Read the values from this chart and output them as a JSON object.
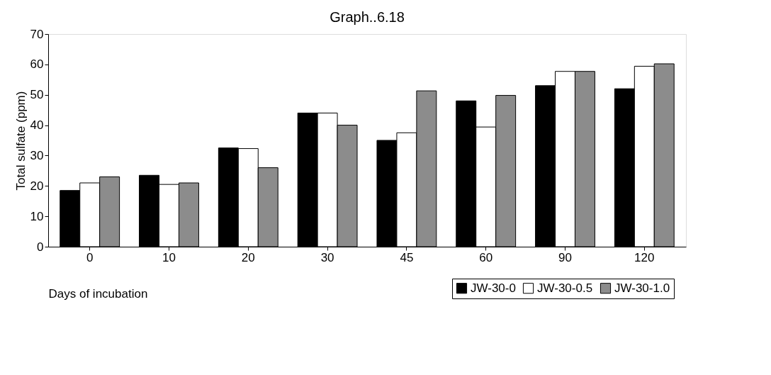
{
  "chart_data": {
    "type": "bar",
    "title": "Graph..6.18",
    "xlabel": "Days of incubation",
    "ylabel": "Total sulfate (ppm)",
    "categories": [
      "0",
      "10",
      "20",
      "30",
      "45",
      "60",
      "90",
      "120"
    ],
    "series": [
      {
        "name": "JW-30-0",
        "color": "#000000",
        "values": [
          18.5,
          23.5,
          32.5,
          44,
          35,
          48,
          53,
          52
        ]
      },
      {
        "name": "JW-30-0.5",
        "color": "#ffffff",
        "values": [
          21,
          20.5,
          32.3,
          44,
          37.5,
          39.4,
          57.7,
          59.4
        ]
      },
      {
        "name": "JW-30-1.0",
        "color": "#8c8c8c",
        "values": [
          23,
          21,
          26,
          40,
          51.3,
          49.8,
          57.7,
          60.2
        ]
      }
    ],
    "ylim": [
      0,
      70
    ],
    "yticks": [
      0,
      10,
      20,
      30,
      40,
      50,
      60,
      70
    ],
    "grid": false,
    "legend": "bottom right"
  }
}
